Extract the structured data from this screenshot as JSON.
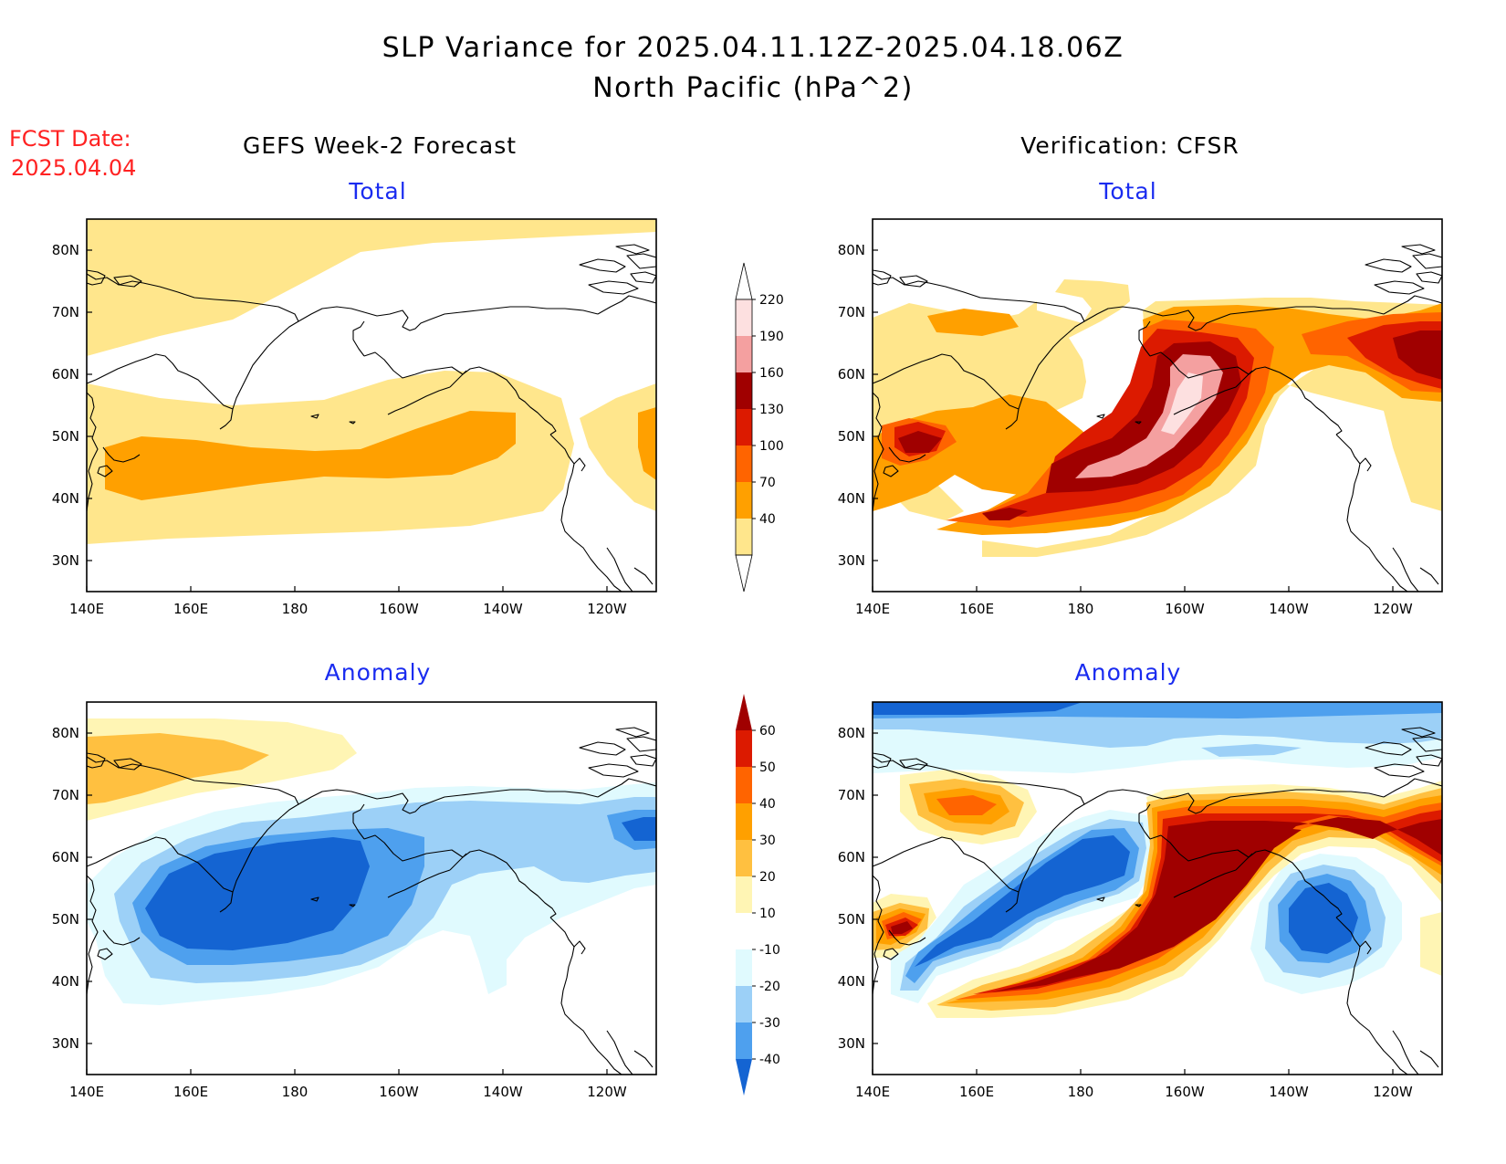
{
  "title_line1": "SLP Variance for 2025.04.11.12Z-2025.04.18.06Z",
  "title_line2": "North Pacific (hPa^2)",
  "fcst_label": "FCST Date:",
  "fcst_date": "2025.04.04",
  "left_title": "GEFS Week-2 Forecast",
  "right_title": "Verification: CFSR",
  "sub_total": "Total",
  "sub_anom": "Anomaly",
  "lon_ticks": [
    "140E",
    "160E",
    "180",
    "160W",
    "140W",
    "120W"
  ],
  "lat_ticks": [
    "80N",
    "70N",
    "60N",
    "50N",
    "40N",
    "30N"
  ],
  "colorbar_total": {
    "labels": [
      "220",
      "190",
      "160",
      "130",
      "100",
      "70",
      "40"
    ],
    "colors": [
      "#fde0e0",
      "#f4a0a0",
      "#a00000",
      "#dc1a00",
      "#ff6400",
      "#ffa000",
      "#ffe68c"
    ]
  },
  "colorbar_anom": {
    "labels": [
      "60",
      "50",
      "40",
      "30",
      "20",
      "10",
      "-10",
      "-20",
      "-30",
      "-40"
    ],
    "colors": [
      "#a00000",
      "#dc1a00",
      "#ff6400",
      "#ffa000",
      "#ffc040",
      "#fff5b4",
      "#ffffff",
      "#e0fafe",
      "#9cd0f7",
      "#4ea0ee",
      "#1464d2"
    ]
  },
  "colors": {
    "total_40": "#ffe68c",
    "total_70": "#ffa000",
    "total_100": "#ff6400",
    "total_130": "#dc1a00",
    "total_160": "#a00000",
    "total_190": "#f4a0a0",
    "total_220": "#fde0e0",
    "anom_p10": "#fff5b4",
    "anom_p20": "#ffc040",
    "anom_p30": "#ffa000",
    "anom_p40": "#ff6400",
    "anom_p50": "#dc1a00",
    "anom_p60": "#a00000",
    "anom_m10": "#e0fafe",
    "anom_m20": "#9cd0f7",
    "anom_m30": "#4ea0ee",
    "anom_m40": "#1464d2",
    "title_blue": "#1a2cf0",
    "fcst_red": "#ff2222"
  }
}
